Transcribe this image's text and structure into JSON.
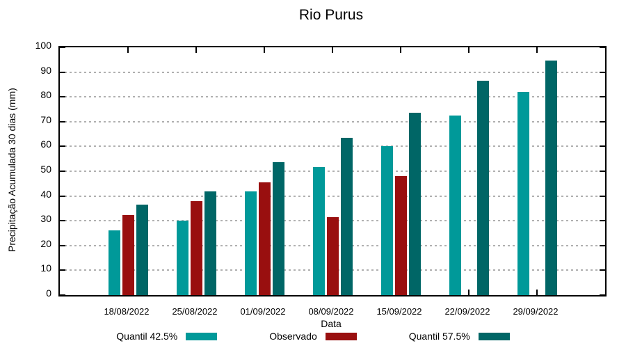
{
  "chart_data": {
    "type": "bar",
    "title": "Rio Purus",
    "xlabel": "Data",
    "ylabel": "Precipitação Acumulada 30 dias (mm)",
    "ylim": [
      0,
      100
    ],
    "ytick_step": 10,
    "grid": true,
    "legend_position": "bottom",
    "categories": [
      "18/08/2022",
      "25/08/2022",
      "01/09/2022",
      "08/09/2022",
      "15/09/2022",
      "22/09/2022",
      "29/09/2022"
    ],
    "series": [
      {
        "name": "Quantil 42.5%",
        "color": "#009999",
        "values": [
          26.1,
          30.2,
          41.8,
          51.8,
          60.1,
          72.5,
          82.0
        ]
      },
      {
        "name": "Observado",
        "color": "#990F0F",
        "values": [
          32.3,
          38.0,
          45.4,
          31.4,
          48.0,
          null,
          null
        ]
      },
      {
        "name": "Quantil 57.5%",
        "color": "#006666",
        "values": [
          36.5,
          41.9,
          53.6,
          63.4,
          73.5,
          86.4,
          94.7
        ]
      }
    ]
  }
}
